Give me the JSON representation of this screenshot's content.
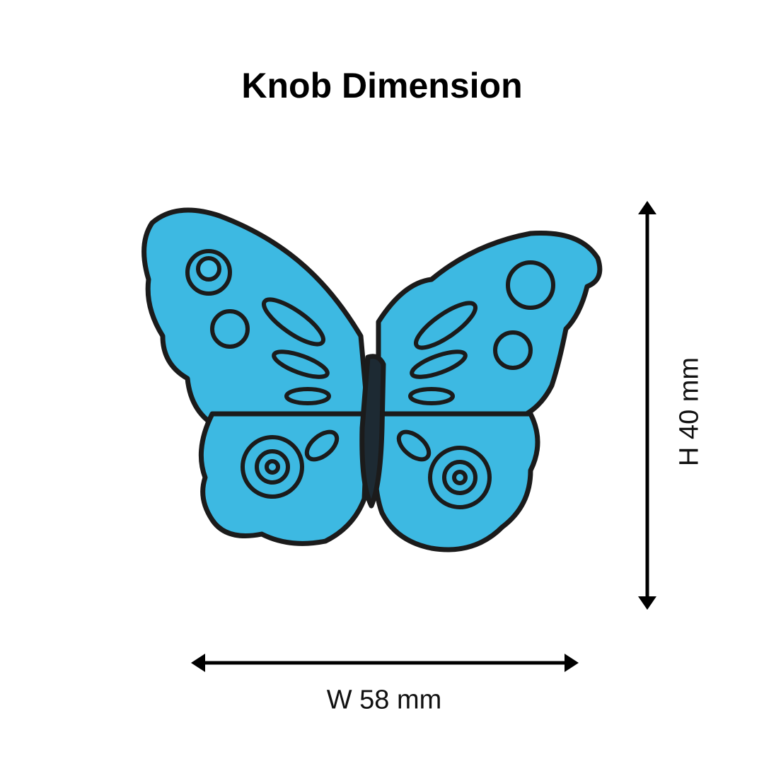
{
  "title": "Knob Dimension",
  "height_label": "H 40 mm",
  "width_label": "W 58 mm",
  "product": {
    "shape": "butterfly",
    "color": "#3db9e2",
    "outline_color": "#1a1a1a"
  }
}
